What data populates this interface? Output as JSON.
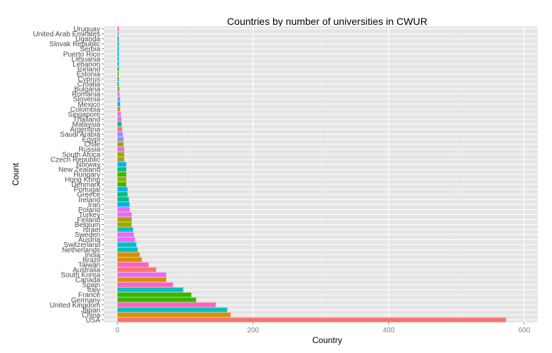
{
  "chart_data": {
    "type": "bar",
    "orientation": "horizontal",
    "title": "Countries by number of universities in CWUR",
    "xlabel": "Country",
    "ylabel": "Count",
    "xlim": [
      0,
      600
    ],
    "x_ticks": [
      0,
      200,
      400,
      600
    ],
    "grid": true,
    "legend": "none",
    "categories": [
      "USA",
      "China",
      "Japan",
      "United Kingdom",
      "Germany",
      "France",
      "Italy",
      "Spain",
      "Canada",
      "South Korea",
      "Australia",
      "Taiwan",
      "Brazil",
      "India",
      "Netherlands",
      "Switzerland",
      "Austria",
      "Sweden",
      "Israel",
      "Belgium",
      "Finland",
      "Turkey",
      "Poland",
      "Iran",
      "Ireland",
      "Greece",
      "Portugal",
      "Denmark",
      "Hong Kong",
      "Hungary",
      "New Zealand",
      "Norway",
      "Czech Republic",
      "South Africa",
      "Russia",
      "Chile",
      "Egypt",
      "Saudi Arabia",
      "Argentina",
      "Malaysia",
      "Thailand",
      "Singapore",
      "Colombia",
      "Mexico",
      "Slovenia",
      "Romania",
      "Bulgaria",
      "Croatia",
      "Cyprus",
      "Estonia",
      "Iceland",
      "Lebanon",
      "Lithuania",
      "Puerto Rico",
      "Serbia",
      "Slovak Republic",
      "Uganda",
      "United Arab Emirates",
      "Uruguay"
    ],
    "values": [
      573,
      167,
      162,
      145,
      116,
      109,
      97,
      82,
      72,
      72,
      57,
      46,
      36,
      33,
      30,
      28,
      26,
      24,
      23,
      21,
      21,
      21,
      18,
      18,
      17,
      15,
      15,
      13,
      13,
      13,
      13,
      13,
      10,
      10,
      10,
      9,
      9,
      8,
      7,
      6,
      6,
      5,
      4,
      4,
      4,
      3,
      3,
      2,
      2,
      2,
      2,
      2,
      2,
      2,
      2,
      2,
      2,
      2,
      2
    ],
    "colors": [
      "#F8766D",
      "#D89000",
      "#00BFC4",
      "#FF62BC",
      "#39B600",
      "#39B600",
      "#00BFC4",
      "#FF62BC",
      "#D89000",
      "#E76BF3",
      "#F8766D",
      "#FF62BC",
      "#D89000",
      "#D89000",
      "#00BFC4",
      "#00BFC4",
      "#E76BF3",
      "#E76BF3",
      "#00BFC4",
      "#A3A500",
      "#A3A500",
      "#E76BF3",
      "#E76BF3",
      "#00B0F6",
      "#00BF7D",
      "#00BF7D",
      "#00B0F6",
      "#39B600",
      "#A3A500",
      "#39B600",
      "#00BF7D",
      "#00B0F6",
      "#A3A500",
      "#A3A500",
      "#E76BF3",
      "#A3A500",
      "#9590FF",
      "#9590FF",
      "#F8766D",
      "#00BF7D",
      "#E76BF3",
      "#E76BF3",
      "#D89000",
      "#00B0F6",
      "#9590FF",
      "#E76BF3",
      "#A3A500",
      "#00BF7D",
      "#00BF7D",
      "#A3A500",
      "#00BF7D",
      "#00BFC4",
      "#00BFC4",
      "#00B0F6",
      "#00B0F6",
      "#00BF7D",
      "#00BF7D",
      "#9590FF",
      "#FF62BC"
    ]
  }
}
